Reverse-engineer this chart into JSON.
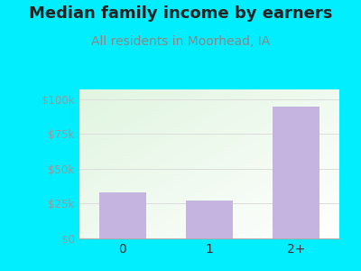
{
  "title": "Median family income by earners",
  "subtitle": "All residents in Moorhead, IA",
  "categories": [
    "0",
    "1",
    "2+"
  ],
  "values": [
    33000,
    27000,
    95000
  ],
  "bar_color": "#c5b3e0",
  "background_color": "#00EEFF",
  "yticks": [
    0,
    25000,
    50000,
    75000,
    100000
  ],
  "ytick_labels": [
    "$0",
    "$25k",
    "$50k",
    "$75k",
    "$100k"
  ],
  "ylim": [
    0,
    107000
  ],
  "title_fontsize": 13,
  "subtitle_fontsize": 10,
  "title_color": "#222222",
  "subtitle_color": "#888888",
  "tick_label_color": "#999999",
  "xtick_color": "#333333",
  "grid_color": "#dddddd",
  "plot_bg_topleft": [
    0.88,
    0.96,
    0.88,
    1.0
  ],
  "plot_bg_bottomright": [
    1.0,
    1.0,
    1.0,
    1.0
  ]
}
